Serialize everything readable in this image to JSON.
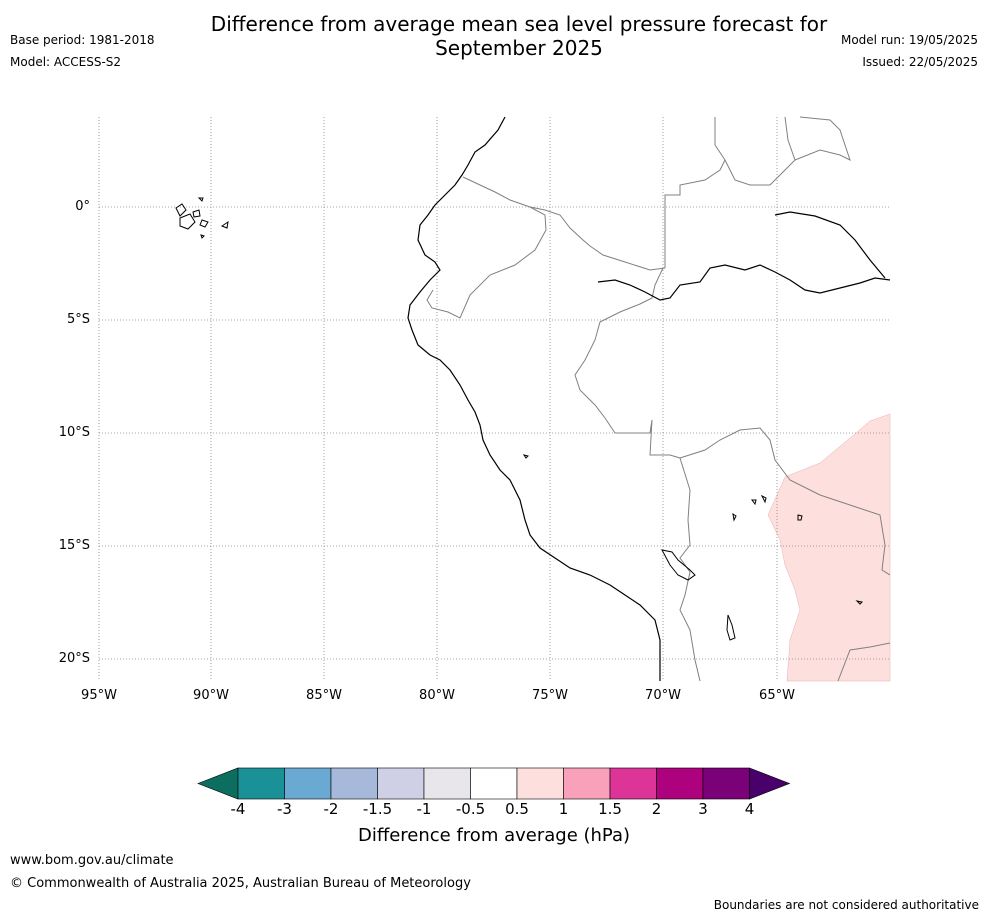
{
  "header": {
    "title_line1": "Difference from average mean sea level pressure forecast for",
    "title_line2": "September 2025",
    "base_period": "Base period: 1981-2018",
    "model": "Model: ACCESS-S2",
    "model_run": "Model run: 19/05/2025",
    "issued": "Issued: 22/05/2025"
  },
  "map": {
    "lat_labels": [
      "0°",
      "5°S",
      "10°S",
      "15°S",
      "20°S"
    ],
    "lon_labels": [
      "95°W",
      "90°W",
      "85°W",
      "80°W",
      "75°W",
      "70°W",
      "65°W"
    ],
    "colors": {
      "anomaly_0_5_to_1": "#fde0de",
      "coastline": "#000000",
      "border": "#808080",
      "gridline": "#888888"
    }
  },
  "colorbar": {
    "title": "Difference from average (hPa)",
    "tick_labels": [
      "-4",
      "-3",
      "-2",
      "-1.5",
      "-1",
      "-0.5",
      "0.5",
      "1",
      "1.5",
      "2",
      "3",
      "4"
    ],
    "colors": [
      "#0b6e5f",
      "#1a9196",
      "#6aaad2",
      "#a7b9da",
      "#cfd0e6",
      "#e8e6ea",
      "#ffffff",
      "#fde0de",
      "#f9a0bb",
      "#dd3497",
      "#ae017e",
      "#7a0177",
      "#49006a"
    ]
  },
  "footer": {
    "website": "www.bom.gov.au/climate",
    "copyright": "© Commonwealth of Australia 2025, Australian Bureau of Meteorology",
    "disclaimer": "Boundaries are not considered authoritative"
  }
}
